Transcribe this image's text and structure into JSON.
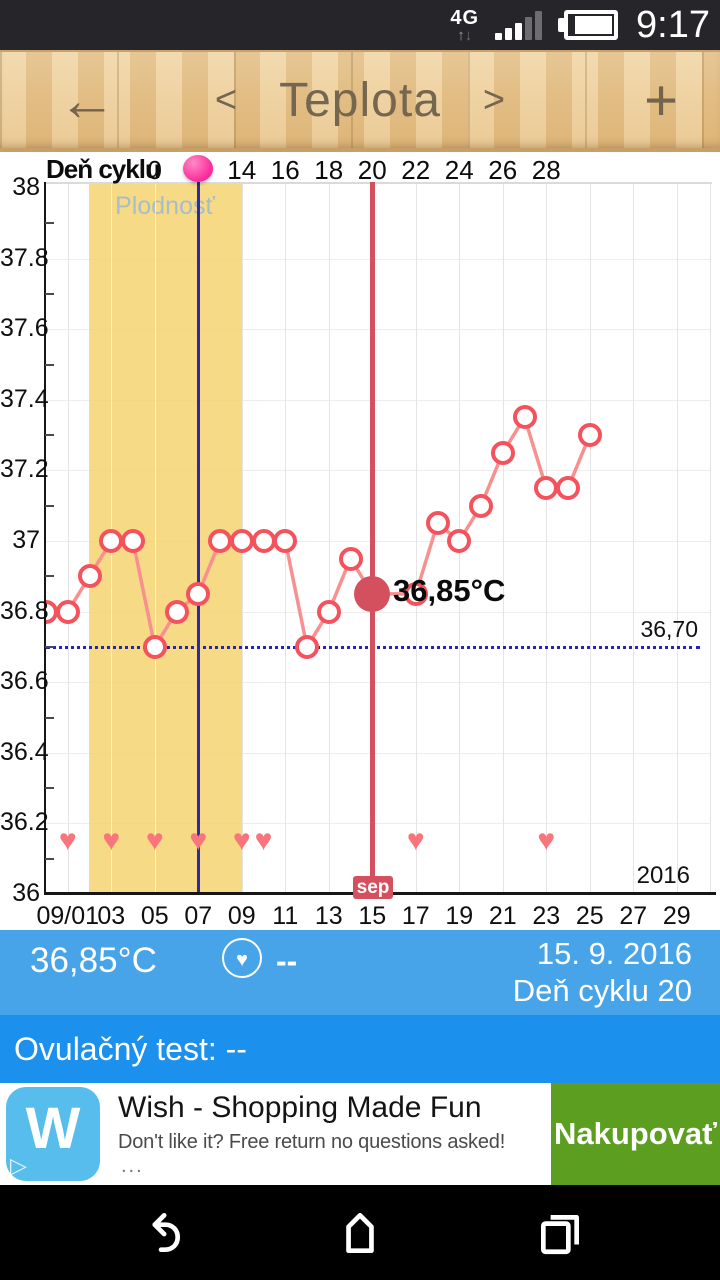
{
  "status_bar": {
    "network_type": "4G",
    "arrow_up": "↑",
    "arrow_down": "↓",
    "time": "9:17"
  },
  "header": {
    "back_glyph": "←",
    "prev_glyph": "<",
    "title": "Teplota",
    "next_glyph": ">",
    "add_glyph": "+"
  },
  "chart_data": {
    "type": "line",
    "top_axis": {
      "label": "Deň cyklu",
      "ticks": [
        {
          "cycle_day": 10,
          "label": "0"
        },
        {
          "cycle_day": 14,
          "label": "14"
        },
        {
          "cycle_day": 16,
          "label": "16"
        },
        {
          "cycle_day": 18,
          "label": "18"
        },
        {
          "cycle_day": 20,
          "label": "20"
        },
        {
          "cycle_day": 22,
          "label": "22"
        },
        {
          "cycle_day": 24,
          "label": "24"
        },
        {
          "cycle_day": 26,
          "label": "26"
        },
        {
          "cycle_day": 28,
          "label": "28"
        }
      ]
    },
    "y_axis": {
      "min": 36,
      "max": 38,
      "ticks": [
        "38",
        "37.8",
        "37.6",
        "37.4",
        "37.2",
        "37",
        "36.8",
        "36.6",
        "36.4",
        "36.2",
        "36"
      ]
    },
    "x_axis": {
      "labels": [
        {
          "date": "09/01",
          "label": "09/01"
        },
        {
          "date": "09/03",
          "label": "03"
        },
        {
          "date": "09/05",
          "label": "05"
        },
        {
          "date": "09/07",
          "label": "07"
        },
        {
          "date": "09/09",
          "label": "09"
        },
        {
          "date": "09/11",
          "label": "11"
        },
        {
          "date": "09/13",
          "label": "13"
        },
        {
          "date": "09/15",
          "label": "15"
        },
        {
          "date": "09/17",
          "label": "17"
        },
        {
          "date": "09/19",
          "label": "19"
        },
        {
          "date": "09/21",
          "label": "21"
        },
        {
          "date": "09/23",
          "label": "23"
        },
        {
          "date": "09/25",
          "label": "25"
        },
        {
          "date": "09/27",
          "label": "27"
        },
        {
          "date": "09/29",
          "label": "29"
        }
      ],
      "month_label": "sep",
      "year_label": "2016"
    },
    "series": [
      {
        "name": "temperature",
        "color": "#F4525C",
        "points": [
          {
            "date": "08/31",
            "temp": 36.8
          },
          {
            "date": "09/01",
            "temp": 36.8
          },
          {
            "date": "09/02",
            "temp": 36.9
          },
          {
            "date": "09/03",
            "temp": 37.0
          },
          {
            "date": "09/04",
            "temp": 37.0
          },
          {
            "date": "09/05",
            "temp": 36.7
          },
          {
            "date": "09/06",
            "temp": 36.8
          },
          {
            "date": "09/07",
            "temp": 36.85
          },
          {
            "date": "09/08",
            "temp": 37.0
          },
          {
            "date": "09/09",
            "temp": 37.0
          },
          {
            "date": "09/10",
            "temp": 37.0
          },
          {
            "date": "09/11",
            "temp": 37.0
          },
          {
            "date": "09/12",
            "temp": 36.7
          },
          {
            "date": "09/13",
            "temp": 36.8
          },
          {
            "date": "09/14",
            "temp": 36.95
          },
          {
            "date": "09/15",
            "temp": 36.85
          },
          {
            "date": "09/17",
            "temp": 36.85
          },
          {
            "date": "09/18",
            "temp": 37.05
          },
          {
            "date": "09/19",
            "temp": 37.0
          },
          {
            "date": "09/20",
            "temp": 37.1
          },
          {
            "date": "09/21",
            "temp": 37.25
          },
          {
            "date": "09/22",
            "temp": 37.35
          },
          {
            "date": "09/23",
            "temp": 37.15
          },
          {
            "date": "09/24",
            "temp": 37.15
          },
          {
            "date": "09/25",
            "temp": 37.3
          }
        ]
      }
    ],
    "selected_point": {
      "date": "09/15",
      "temp": 36.85,
      "label": "36,85°C"
    },
    "threshold_line": {
      "value": 36.7,
      "label": "36,70",
      "color": "#2424BC"
    },
    "fertile_window": {
      "label": "Plodnosť",
      "start_date": "09/02",
      "end_date": "09/09",
      "color": "#F5D26A"
    },
    "ovulation_line": {
      "date": "09/07",
      "color": "#2B2BA8"
    },
    "ovulation_marker": {
      "cycle_day": 12,
      "color": "#FB2F9D"
    },
    "hearts": {
      "dates": [
        "09/01",
        "09/03",
        "09/05",
        "09/07",
        "09/09",
        "09/10",
        "09/17",
        "09/23"
      ],
      "level": 36.15,
      "glyph": "♥",
      "color": "#F9757C"
    }
  },
  "info_bar": {
    "temperature": "36,85°C",
    "heart_glyph": "♥",
    "heart_note": "--",
    "date": "15. 9. 2016",
    "cycle_day_text": "Deň cyklu 20"
  },
  "ovulation_bar": {
    "text": "Ovulačný test: --"
  },
  "ad": {
    "logo_letter": "W",
    "adchoices_glyph": "▷",
    "title": "Wish - Shopping Made Fun",
    "description": "Don't like it? Free return no questions asked!",
    "more_glyph": "...",
    "cta_label": "Nakupovať",
    "cta_color": "#5C9F20",
    "logo_color": "#56BDEC"
  },
  "colors": {
    "info_bar": "#48A4E8",
    "ovulation_bar": "#1B90EC",
    "selected_line": "#D5505F",
    "series_line": "#F89090",
    "fertile_band": "#F5D26A",
    "header_text": "#756650"
  }
}
